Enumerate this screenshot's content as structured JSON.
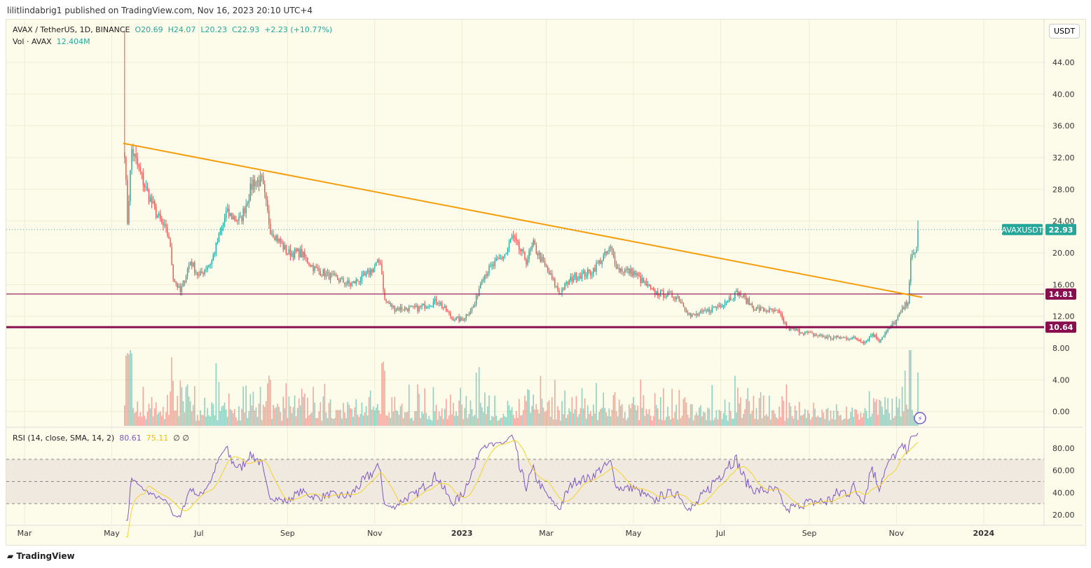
{
  "header": {
    "published": "lilitlindabrig1 published on TradingView.com, Nov 16, 2023 20:10 UTC+4"
  },
  "legend": {
    "symbol": "AVAX / TetherUS, 1D, BINANCE",
    "o": "O20.69",
    "h": "H24.07",
    "l": "L20.23",
    "c": "C22.93",
    "change": "+2.23 (+10.77%)",
    "vol_label": "Vol · AVAX",
    "vol_value": "12.404M",
    "rsi_label": "RSI (14, close, SMA, 14, 2)",
    "rsi_value": "80.61",
    "rsi_sma": "75.11",
    "rsi_extra": "∅ ∅"
  },
  "currency_button": "USDT",
  "brand": "TradingView",
  "colors": {
    "up": "#26a69a",
    "down": "#ef5350",
    "trendline": "#f59e0b",
    "levels": "#880e4f",
    "rsi": "#7e57c2",
    "rsi_sma": "#f5d327"
  },
  "chart_data": {
    "type": "candlestick",
    "symbol": "AVAXUSDT",
    "last_price": "22.93",
    "last_candle": {
      "open": 20.69,
      "high": 24.07,
      "low": 20.23,
      "close": 22.93
    },
    "price_ticks": [
      "44.00",
      "40.00",
      "36.00",
      "32.00",
      "28.00",
      "24.00",
      "20.00",
      "16.00",
      "12.00",
      "8.00",
      "4.00",
      "0.00"
    ],
    "time_ticks": [
      "Mar",
      "May",
      "Jul",
      "Sep",
      "Nov",
      "2023",
      "Mar",
      "May",
      "Jul",
      "Sep",
      "Nov",
      "2024"
    ],
    "rsi_ticks": [
      "80.00",
      "60.00",
      "40.00",
      "20.00"
    ],
    "rsi_bands": [
      70,
      50,
      30
    ],
    "levels": [
      {
        "price": 14.81,
        "label": "14.81"
      },
      {
        "price": 10.64,
        "label": "10.64"
      }
    ],
    "trendline": [
      {
        "date": "2022-05-09",
        "price": 33.8
      },
      {
        "date": "2023-11-19",
        "price": 14.4
      }
    ],
    "approx_closes": [
      [
        "2022-05-10",
        33
      ],
      [
        "2022-05-12",
        24
      ],
      [
        "2022-05-15",
        33
      ],
      [
        "2022-05-25",
        28
      ],
      [
        "2022-06-01",
        25
      ],
      [
        "2022-06-10",
        22
      ],
      [
        "2022-06-13",
        17
      ],
      [
        "2022-06-18",
        15
      ],
      [
        "2022-06-25",
        19
      ],
      [
        "2022-07-01",
        17
      ],
      [
        "2022-07-10",
        19
      ],
      [
        "2022-07-20",
        25
      ],
      [
        "2022-07-30",
        24
      ],
      [
        "2022-08-08",
        29
      ],
      [
        "2022-08-14",
        29
      ],
      [
        "2022-08-20",
        23
      ],
      [
        "2022-09-01",
        20
      ],
      [
        "2022-09-10",
        20
      ],
      [
        "2022-09-20",
        18
      ],
      [
        "2022-10-01",
        17
      ],
      [
        "2022-10-15",
        16
      ],
      [
        "2022-10-25",
        17
      ],
      [
        "2022-11-05",
        19
      ],
      [
        "2022-11-08",
        14
      ],
      [
        "2022-11-15",
        13
      ],
      [
        "2022-12-01",
        13
      ],
      [
        "2022-12-15",
        14
      ],
      [
        "2022-12-25",
        11.8
      ],
      [
        "2023-01-01",
        11.5
      ],
      [
        "2023-01-10",
        13.5
      ],
      [
        "2023-01-15",
        17
      ],
      [
        "2023-02-01",
        20
      ],
      [
        "2023-02-05",
        22
      ],
      [
        "2023-02-15",
        19
      ],
      [
        "2023-02-20",
        21
      ],
      [
        "2023-03-01",
        18
      ],
      [
        "2023-03-10",
        15
      ],
      [
        "2023-03-20",
        17
      ],
      [
        "2023-04-01",
        17.5
      ],
      [
        "2023-04-15",
        20.5
      ],
      [
        "2023-04-20",
        18
      ],
      [
        "2023-05-01",
        17.5
      ],
      [
        "2023-05-15",
        15
      ],
      [
        "2023-06-01",
        14.5
      ],
      [
        "2023-06-10",
        12
      ],
      [
        "2023-06-20",
        12.5
      ],
      [
        "2023-07-01",
        13.5
      ],
      [
        "2023-07-13",
        15
      ],
      [
        "2023-07-25",
        13
      ],
      [
        "2023-08-10",
        12.5
      ],
      [
        "2023-08-17",
        10.5
      ],
      [
        "2023-09-01",
        9.8
      ],
      [
        "2023-09-15",
        9.3
      ],
      [
        "2023-10-01",
        9.3
      ],
      [
        "2023-10-10",
        8.8
      ],
      [
        "2023-10-15",
        9.8
      ],
      [
        "2023-10-20",
        9
      ],
      [
        "2023-11-01",
        11.5
      ],
      [
        "2023-11-09",
        14
      ],
      [
        "2023-11-11",
        19
      ],
      [
        "2023-11-14",
        20
      ],
      [
        "2023-11-15",
        20.69
      ],
      [
        "2023-11-16",
        22.93
      ]
    ]
  }
}
